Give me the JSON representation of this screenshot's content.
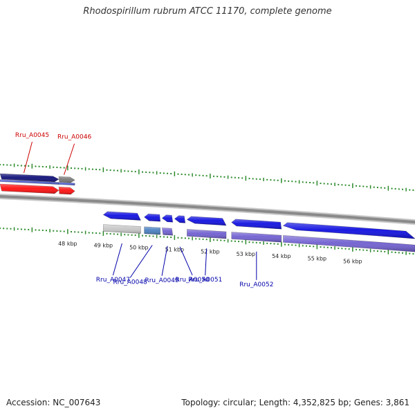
{
  "title": "Rhodospirillum rubrum ATCC 11170, complete genome",
  "accession": "Accession: NC_007643",
  "summary": "Topology: circular; Length: 4,352,825 bp; Genes: 3,861",
  "colors": {
    "backbone": "#8a8a8a",
    "tick": "#2a8a2a",
    "label_top": "#cc0000",
    "label_bottom": "#0000aa",
    "gene_blue": "#1010e0",
    "gene_purple": "#7060d0",
    "gene_red": "#ff1010",
    "gene_gray": "#7a7a7a",
    "gene_lightgray": "#c8c8c8",
    "gene_steel": "#4a80c0",
    "gene_navy": "#10107a"
  },
  "scale": {
    "start_kbp": 46.1,
    "end_kbp": 57.75,
    "unit": "kbp",
    "labels": [
      {
        "kbp": 48,
        "text": "48 kbp"
      },
      {
        "kbp": 49,
        "text": "49 kbp"
      },
      {
        "kbp": 50,
        "text": "50 kbp"
      },
      {
        "kbp": 51,
        "text": "51 kbp"
      },
      {
        "kbp": 52,
        "text": "52 kbp"
      },
      {
        "kbp": 53,
        "text": "53 kbp"
      },
      {
        "kbp": 54,
        "text": "54 kbp"
      },
      {
        "kbp": 55,
        "text": "55 kbp"
      },
      {
        "kbp": 56,
        "text": "56 kbp"
      }
    ]
  },
  "genes": [
    {
      "id": "Rru_A0045",
      "label": "Rru_A0045",
      "start_kbp": 46.1,
      "end_kbp": 47.75,
      "strand": "+",
      "cds_color": "gene_navy",
      "feature_color": "gene_red",
      "labeled": true
    },
    {
      "id": "Rru_A0046",
      "label": "Rru_A0046",
      "start_kbp": 47.75,
      "end_kbp": 48.2,
      "strand": "+",
      "cds_color": "gene_gray",
      "feature_color": "gene_red",
      "labeled": true
    },
    {
      "id": "Rru_A0047",
      "label": "Rru_A0047",
      "start_kbp": 49.0,
      "end_kbp": 50.05,
      "strand": "-",
      "cds_color": "gene_blue",
      "feature_color": "gene_lightgray",
      "labeled": true
    },
    {
      "id": "Rru_A0048",
      "label": "Rru_A0048",
      "start_kbp": 50.15,
      "end_kbp": 50.6,
      "strand": "-",
      "cds_color": "gene_blue",
      "feature_color": "gene_steel",
      "labeled": true
    },
    {
      "id": "Rru_A0049",
      "label": "Rru_A0049",
      "start_kbp": 50.65,
      "end_kbp": 50.95,
      "strand": "-",
      "cds_color": "gene_blue",
      "feature_color": "gene_purple",
      "labeled": true
    },
    {
      "id": "Rru_A0050",
      "label": "Rru_A0050",
      "start_kbp": 51.0,
      "end_kbp": 51.3,
      "strand": "-",
      "cds_color": "gene_blue",
      "feature_color": "",
      "labeled": true
    },
    {
      "id": "Rru_A0051",
      "label": "Rru_A0051",
      "start_kbp": 51.35,
      "end_kbp": 52.45,
      "strand": "-",
      "cds_color": "gene_blue",
      "feature_color": "gene_purple",
      "labeled": true
    },
    {
      "id": "Rru_A0052",
      "label": "Rru_A0052",
      "start_kbp": 52.6,
      "end_kbp": 54.0,
      "strand": "-",
      "cds_color": "gene_blue",
      "feature_color": "gene_purple",
      "labeled": true
    },
    {
      "id": "next-gene",
      "label": "",
      "start_kbp": 54.05,
      "end_kbp": 57.75,
      "strand": "-",
      "cds_color": "gene_blue",
      "feature_color": "gene_purple",
      "labeled": false
    }
  ]
}
